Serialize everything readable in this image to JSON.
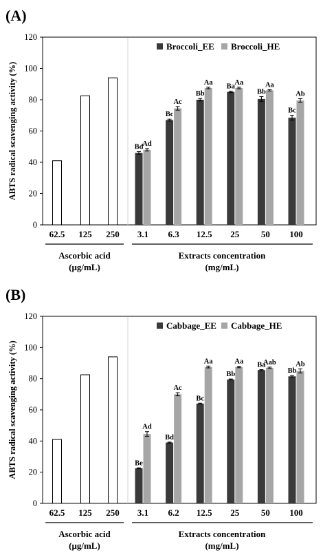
{
  "chart_data": [
    {
      "type": "bar",
      "panel_label": "(A)",
      "ylabel": "ABTS radical scavenging activity (%)",
      "ylim": [
        0,
        120
      ],
      "yticks": [
        "0",
        "20",
        "40",
        "60",
        "80",
        "100",
        "120"
      ],
      "reference": {
        "name": "Ascorbic acid",
        "group_label": "Ascorbic acid",
        "group_unit": "(μg/mL)",
        "categories": [
          "62.5",
          "125",
          "250"
        ],
        "values": [
          41,
          82.5,
          94
        ],
        "color": "#ffffff"
      },
      "extracts": {
        "group_label": "Extracts concentration",
        "group_unit": "(mg/mL)",
        "categories": [
          "3.1",
          "6.3",
          "12.5",
          "25",
          "50",
          "100"
        ],
        "series": [
          {
            "name": "Broccoli_EE",
            "color": "#3a3a3a",
            "values": [
              46,
              67,
              80,
              85,
              80.5,
              68.5
            ],
            "errors": [
              0.8,
              0.6,
              0.8,
              0.5,
              1.5,
              1.6
            ],
            "labels": [
              "Bd",
              "Bc",
              "Bb",
              "Ba",
              "Bb",
              "Bc"
            ]
          },
          {
            "name": "Broccoli_HE",
            "color": "#a6a6a6",
            "values": [
              48,
              74.5,
              87.5,
              87.5,
              86,
              79.5
            ],
            "errors": [
              0.8,
              1.2,
              0.5,
              0.5,
              0.4,
              1.2
            ],
            "labels": [
              "Ad",
              "Ac",
              "Aa",
              "Aa",
              "Aa",
              "Ab"
            ]
          }
        ]
      },
      "legend": "top-right",
      "grid": false
    },
    {
      "type": "bar",
      "panel_label": "(B)",
      "ylabel": "ABTS radical scavenging activity (%)",
      "ylim": [
        0,
        120
      ],
      "yticks": [
        "0",
        "20",
        "40",
        "60",
        "80",
        "100",
        "120"
      ],
      "reference": {
        "name": "Ascorbic acid",
        "group_label": "Ascorbic acid",
        "group_unit": "(μg/mL)",
        "categories": [
          "62.5",
          "125",
          "250"
        ],
        "values": [
          41,
          82.5,
          94
        ],
        "color": "#ffffff"
      },
      "extracts": {
        "group_label": "Extracts concentration",
        "group_unit": "(mg/mL)",
        "categories": [
          "3.1",
          "6.2",
          "12.5",
          "25",
          "50",
          "100"
        ],
        "series": [
          {
            "name": "Cabbage_EE",
            "color": "#3a3a3a",
            "values": [
              22.5,
              39,
              64,
              79.5,
              85.5,
              81.5
            ],
            "errors": [
              0.3,
              0.3,
              0.3,
              0.3,
              0.3,
              0.5
            ],
            "labels": [
              "Be",
              "Bd",
              "Bc",
              "Bb",
              "Ba",
              "Bb"
            ]
          },
          {
            "name": "Cabbage_HE",
            "color": "#a6a6a6",
            "values": [
              44.5,
              70,
              87.5,
              87.5,
              87,
              85
            ],
            "errors": [
              1.5,
              1.0,
              0.6,
              0.5,
              0.4,
              1.3
            ],
            "labels": [
              "Ad",
              "Ac",
              "Aa",
              "Aa",
              "Aab",
              "Ab"
            ]
          }
        ]
      },
      "legend": "top-right",
      "grid": false
    }
  ]
}
